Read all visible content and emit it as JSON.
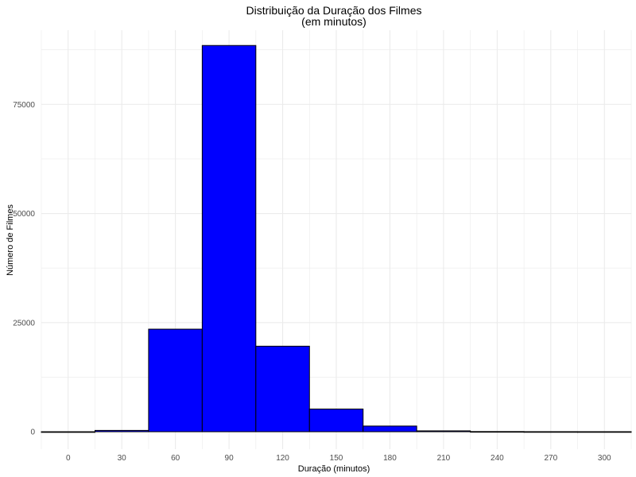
{
  "chart_data": {
    "type": "bar",
    "title": "Distribuição da Duração dos Filmes",
    "subtitle": "(em minutos)",
    "xlabel": "Duração (minutos)",
    "ylabel": "Número de Filmes",
    "xlim": [
      -15,
      315
    ],
    "ylim": [
      -4000,
      92000
    ],
    "x_ticks": [
      0,
      30,
      60,
      90,
      120,
      150,
      180,
      210,
      240,
      270,
      300
    ],
    "y_ticks": [
      0,
      25000,
      50000,
      75000
    ],
    "y_tick_labels": [
      "0",
      "25000",
      "50000",
      "75000"
    ],
    "grid": true,
    "bin_width": 30,
    "bins": [
      {
        "x": 0,
        "count": 0
      },
      {
        "x": 30,
        "count": 300
      },
      {
        "x": 60,
        "count": 23500
      },
      {
        "x": 90,
        "count": 88500
      },
      {
        "x": 120,
        "count": 19600
      },
      {
        "x": 150,
        "count": 5200
      },
      {
        "x": 180,
        "count": 1300
      },
      {
        "x": 210,
        "count": 200
      },
      {
        "x": 240,
        "count": 40
      },
      {
        "x": 270,
        "count": 15
      },
      {
        "x": 300,
        "count": 10
      }
    ],
    "fill_color": "#0000ff",
    "edge_color": "#000000",
    "grid_color": "#ebebeb"
  }
}
